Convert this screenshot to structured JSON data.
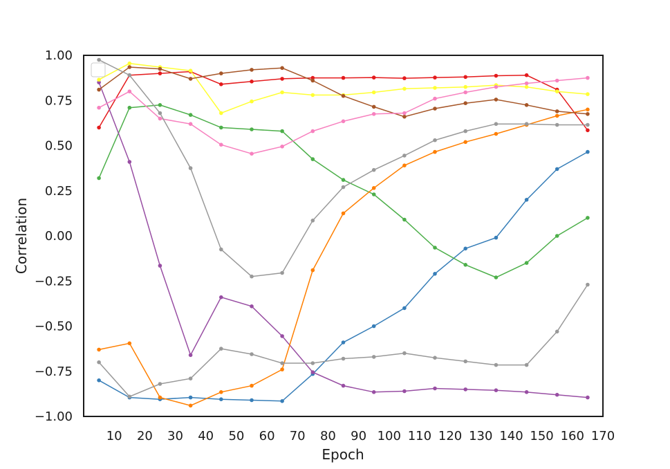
{
  "chart_data": {
    "type": "line",
    "xlabel": "Epoch",
    "ylabel": "Correlation",
    "xlim": [
      0,
      170
    ],
    "ylim": [
      -1.0,
      1.0
    ],
    "xticks": [
      10,
      20,
      30,
      40,
      50,
      60,
      70,
      80,
      90,
      100,
      110,
      120,
      130,
      140,
      150,
      160,
      170
    ],
    "yticks": [
      -1.0,
      -0.75,
      -0.5,
      -0.25,
      0.0,
      0.25,
      0.5,
      0.75,
      1.0
    ],
    "xtick_labels": [
      "10",
      "20",
      "30",
      "40",
      "50",
      "60",
      "70",
      "80",
      "90",
      "100",
      "110",
      "120",
      "130",
      "140",
      "150",
      "160",
      "170"
    ],
    "ytick_labels": [
      "−1.00",
      "−0.75",
      "−0.50",
      "−0.25",
      "0.00",
      "0.25",
      "0.50",
      "0.75",
      "1.00"
    ],
    "grid": false,
    "legend": {
      "placement": "upper-left",
      "entries": []
    },
    "x": [
      5,
      15,
      25,
      35,
      45,
      55,
      65,
      75,
      85,
      95,
      105,
      115,
      125,
      135,
      145,
      155,
      165
    ],
    "series": [
      {
        "color": "#e41a1c",
        "values": [
          0.6,
          0.89,
          0.9,
          0.91,
          0.84,
          0.855,
          0.87,
          0.875,
          0.875,
          0.877,
          0.873,
          0.877,
          0.88,
          0.887,
          0.89,
          0.81,
          0.585
        ]
      },
      {
        "color": "#377eb8",
        "values": [
          -0.8,
          -0.895,
          -0.905,
          -0.895,
          -0.905,
          -0.91,
          -0.915,
          -0.765,
          -0.59,
          -0.5,
          -0.4,
          -0.21,
          -0.07,
          -0.01,
          0.2,
          0.37,
          0.465
        ]
      },
      {
        "color": "#4daf4a",
        "values": [
          0.32,
          0.71,
          0.725,
          0.67,
          0.6,
          0.59,
          0.58,
          0.425,
          0.31,
          0.23,
          0.09,
          -0.065,
          -0.16,
          -0.23,
          -0.15,
          0.0,
          0.1
        ]
      },
      {
        "color": "#984ea3",
        "values": [
          0.85,
          0.41,
          -0.165,
          -0.66,
          -0.34,
          -0.39,
          -0.555,
          -0.755,
          -0.83,
          -0.865,
          -0.86,
          -0.845,
          -0.85,
          -0.855,
          -0.865,
          -0.88,
          -0.895
        ]
      },
      {
        "color": "#ff7f00",
        "values": [
          -0.63,
          -0.595,
          -0.895,
          -0.94,
          -0.865,
          -0.83,
          -0.74,
          -0.19,
          0.125,
          0.265,
          0.39,
          0.465,
          0.52,
          0.565,
          0.615,
          0.665,
          0.7
        ]
      },
      {
        "color": "#ffff33",
        "values": [
          0.865,
          0.955,
          0.935,
          0.915,
          0.68,
          0.745,
          0.795,
          0.78,
          0.78,
          0.795,
          0.815,
          0.82,
          0.825,
          0.835,
          0.825,
          0.8,
          0.785
        ]
      },
      {
        "color": "#a65628",
        "values": [
          0.81,
          0.935,
          0.925,
          0.87,
          0.9,
          0.92,
          0.93,
          0.86,
          0.775,
          0.715,
          0.66,
          0.705,
          0.735,
          0.755,
          0.725,
          0.69,
          0.675
        ]
      },
      {
        "color": "#f781bf",
        "values": [
          0.71,
          0.8,
          0.65,
          0.62,
          0.505,
          0.455,
          0.495,
          0.58,
          0.635,
          0.675,
          0.68,
          0.76,
          0.795,
          0.825,
          0.845,
          0.86,
          0.875
        ]
      },
      {
        "color": "#999999",
        "values": [
          0.975,
          0.89,
          0.68,
          0.375,
          -0.075,
          -0.225,
          -0.205,
          0.085,
          0.27,
          0.365,
          0.445,
          0.53,
          0.58,
          0.62,
          0.62,
          0.615,
          0.615
        ]
      },
      {
        "color": "#999999",
        "values": [
          -0.7,
          -0.89,
          -0.82,
          -0.79,
          -0.625,
          -0.655,
          -0.705,
          -0.705,
          -0.68,
          -0.67,
          -0.65,
          -0.675,
          -0.695,
          -0.715,
          -0.715,
          -0.53,
          -0.27
        ]
      }
    ]
  }
}
